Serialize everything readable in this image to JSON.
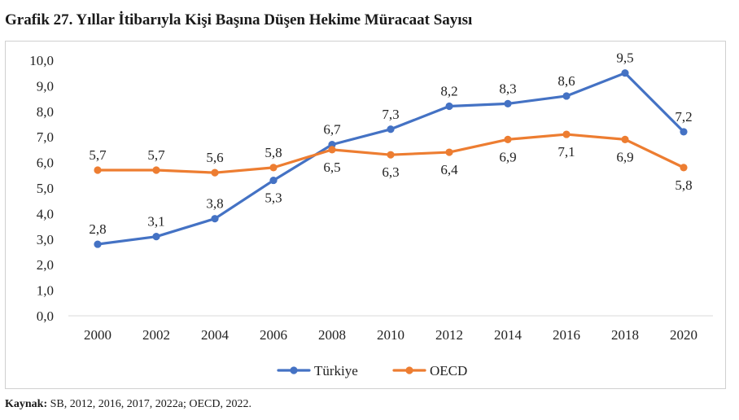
{
  "title": "Grafik 27. Yıllar İtibarıyla Kişi Başına Düşen Hekime Müracaat Sayısı",
  "source": {
    "label": "Kaynak:",
    "text": "SB, 2012, 2016, 2017, 2022a; OECD, 2022."
  },
  "chart_data": {
    "type": "line",
    "title": "",
    "xlabel": "",
    "ylabel": "",
    "categories": [
      "2000",
      "2002",
      "2004",
      "2006",
      "2008",
      "2010",
      "2012",
      "2014",
      "2016",
      "2018",
      "2020"
    ],
    "ylim": [
      0,
      10
    ],
    "yticks": [
      "0,0",
      "1,0",
      "2,0",
      "3,0",
      "4,0",
      "5,0",
      "6,0",
      "7,0",
      "8,0",
      "9,0",
      "10,0"
    ],
    "grid": false,
    "legend_position": "bottom",
    "series": [
      {
        "name": "Türkiye",
        "color": "#4472C4",
        "values": [
          2.8,
          3.1,
          3.8,
          5.3,
          6.7,
          7.3,
          8.2,
          8.3,
          8.6,
          9.5,
          7.2
        ],
        "labels": [
          "2,8",
          "3,1",
          "3,8",
          "5,3",
          "6,7",
          "7,3",
          "8,2",
          "8,3",
          "8,6",
          "9,5",
          "7,2"
        ],
        "label_side": [
          "above",
          "above",
          "above",
          "below",
          "above",
          "above",
          "above",
          "above",
          "above",
          "above",
          "above"
        ]
      },
      {
        "name": "OECD",
        "color": "#ED7D31",
        "values": [
          5.7,
          5.7,
          5.6,
          5.8,
          6.5,
          6.3,
          6.4,
          6.9,
          7.1,
          6.9,
          5.8
        ],
        "labels": [
          "5,7",
          "5,7",
          "5,6",
          "5,8",
          "6,5",
          "6,3",
          "6,4",
          "6,9",
          "7,1",
          "6,9",
          "5,8"
        ],
        "label_side": [
          "above",
          "above",
          "above",
          "above",
          "below",
          "below",
          "below",
          "below",
          "below",
          "below",
          "below"
        ]
      }
    ]
  }
}
